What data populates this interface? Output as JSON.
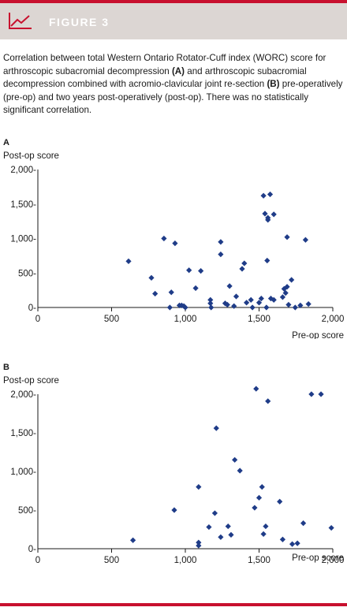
{
  "header": {
    "figure_label": "FIGURE 3",
    "icon": "line-chart-icon"
  },
  "caption": {
    "part1": "Correlation between total Western Ontario Rotator-Cuff index (WORC) score for arthroscopic subacromial decompression ",
    "markA": "(A)",
    "part2": " and arthroscopic subacromial decompression combined with acromio-clavicular joint re-section ",
    "markB": "(B)",
    "part3": " pre-operatively (pre-op) and two years post-operatively (post-op). There was no statistically significant correlation."
  },
  "colors": {
    "accent": "#c8102e",
    "header_bg": "#dcd6d3",
    "marker": "#1f3c88"
  },
  "chart_data": [
    {
      "type": "scatter",
      "panel": "A",
      "ylabel": "Post-op score",
      "xlabel": "Pre-op score",
      "xlim": [
        0,
        2000
      ],
      "ylim": [
        0,
        2000
      ],
      "xticks": [
        0,
        500,
        1000,
        1500,
        2000
      ],
      "yticks": [
        0,
        500,
        1000,
        1500,
        2000
      ],
      "xtick_labels": [
        "0",
        "500",
        "1,000",
        "1,500",
        "2,000"
      ],
      "ytick_labels": [
        "0-",
        "500-",
        "1,000-",
        "1,500-",
        "2,000-"
      ],
      "points": [
        [
          615,
          670
        ],
        [
          770,
          430
        ],
        [
          795,
          200
        ],
        [
          855,
          1000
        ],
        [
          905,
          220
        ],
        [
          930,
          930
        ],
        [
          895,
          0
        ],
        [
          960,
          30
        ],
        [
          975,
          30
        ],
        [
          990,
          20
        ],
        [
          1000,
          0
        ],
        [
          1025,
          540
        ],
        [
          1070,
          280
        ],
        [
          1105,
          530
        ],
        [
          1170,
          110
        ],
        [
          1170,
          60
        ],
        [
          1175,
          0
        ],
        [
          1240,
          950
        ],
        [
          1240,
          770
        ],
        [
          1270,
          60
        ],
        [
          1285,
          40
        ],
        [
          1300,
          310
        ],
        [
          1330,
          20
        ],
        [
          1345,
          160
        ],
        [
          1385,
          560
        ],
        [
          1400,
          640
        ],
        [
          1415,
          70
        ],
        [
          1445,
          110
        ],
        [
          1455,
          0
        ],
        [
          1500,
          70
        ],
        [
          1515,
          130
        ],
        [
          1530,
          1620
        ],
        [
          1540,
          1360
        ],
        [
          1550,
          0
        ],
        [
          1555,
          680
        ],
        [
          1560,
          1270
        ],
        [
          1560,
          1300
        ],
        [
          1575,
          1640
        ],
        [
          1580,
          130
        ],
        [
          1600,
          1350
        ],
        [
          1600,
          110
        ],
        [
          1660,
          150
        ],
        [
          1670,
          270
        ],
        [
          1680,
          210
        ],
        [
          1690,
          1020
        ],
        [
          1690,
          300
        ],
        [
          1720,
          400
        ],
        [
          1700,
          40
        ],
        [
          1745,
          0
        ],
        [
          1780,
          30
        ],
        [
          1815,
          980
        ],
        [
          1835,
          50
        ]
      ]
    },
    {
      "type": "scatter",
      "panel": "B",
      "ylabel": "Post-op score",
      "xlabel": "Pre-op score",
      "xlim": [
        0,
        2000
      ],
      "ylim": [
        0,
        2000
      ],
      "xticks": [
        0,
        500,
        1000,
        1500,
        2000
      ],
      "yticks": [
        0,
        500,
        1000,
        1500,
        2000
      ],
      "xtick_labels": [
        "0",
        "500",
        "1,000",
        "1,500",
        "2,000"
      ],
      "ytick_labels": [
        "0-",
        "500-",
        "1,000-",
        "1,500-",
        "2,000-"
      ],
      "points": [
        [
          645,
          110
        ],
        [
          925,
          500
        ],
        [
          1090,
          800
        ],
        [
          1090,
          40
        ],
        [
          1090,
          80
        ],
        [
          1160,
          280
        ],
        [
          1200,
          460
        ],
        [
          1210,
          1560
        ],
        [
          1240,
          150
        ],
        [
          1290,
          290
        ],
        [
          1310,
          180
        ],
        [
          1335,
          1150
        ],
        [
          1370,
          1010
        ],
        [
          1480,
          2070
        ],
        [
          1470,
          530
        ],
        [
          1500,
          660
        ],
        [
          1520,
          800
        ],
        [
          1530,
          190
        ],
        [
          1545,
          290
        ],
        [
          1560,
          1910
        ],
        [
          1640,
          610
        ],
        [
          1660,
          120
        ],
        [
          1725,
          60
        ],
        [
          1760,
          70
        ],
        [
          1800,
          330
        ],
        [
          1855,
          2000
        ],
        [
          1920,
          2000
        ],
        [
          1990,
          270
        ]
      ]
    }
  ]
}
